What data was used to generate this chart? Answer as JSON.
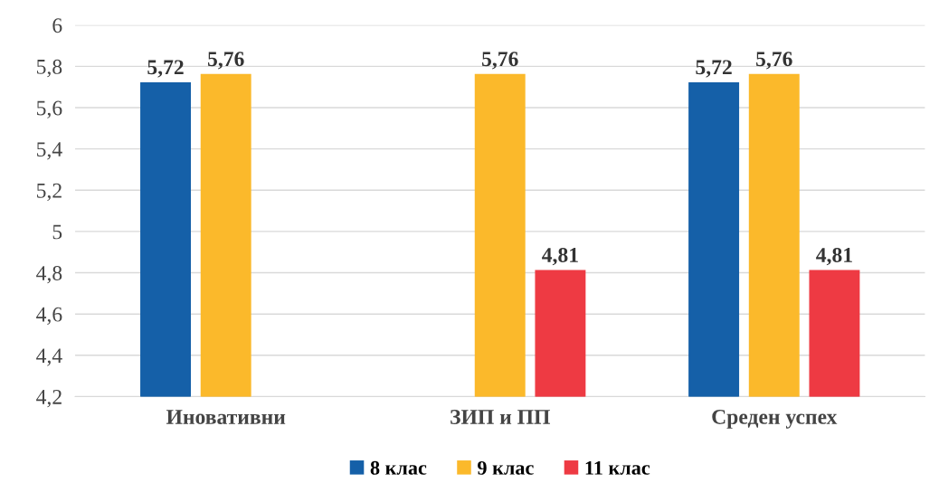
{
  "chart_data": {
    "type": "bar",
    "categories": [
      "Иновативни",
      "ЗИП и ПП",
      "Среден успех"
    ],
    "series": [
      {
        "name": "8 клас",
        "color": "#1560a8",
        "values": [
          5.72,
          null,
          5.72
        ],
        "value_labels": [
          "5,72",
          null,
          "5,72"
        ]
      },
      {
        "name": "9 клас",
        "color": "#fbb92b",
        "values": [
          5.76,
          5.76,
          5.76
        ],
        "value_labels": [
          "5,76",
          "5,76",
          "5,76"
        ]
      },
      {
        "name": "11 клас",
        "color": "#ee3a43",
        "values": [
          null,
          4.81,
          4.81
        ],
        "value_labels": [
          null,
          "4,81",
          "4,81"
        ]
      }
    ],
    "ylim": [
      4.2,
      6
    ],
    "yticks": [
      {
        "value": 4.2,
        "label": "4,2"
      },
      {
        "value": 4.4,
        "label": "4,4"
      },
      {
        "value": 4.6,
        "label": "4,6"
      },
      {
        "value": 4.8,
        "label": "4,8"
      },
      {
        "value": 5,
        "label": "5"
      },
      {
        "value": 5.2,
        "label": "5,2"
      },
      {
        "value": 5.4,
        "label": "5,4"
      },
      {
        "value": 5.6,
        "label": "5,6"
      },
      {
        "value": 5.8,
        "label": "5,8"
      },
      {
        "value": 6,
        "label": "6"
      }
    ],
    "grid": "y",
    "legend": "bottom"
  }
}
